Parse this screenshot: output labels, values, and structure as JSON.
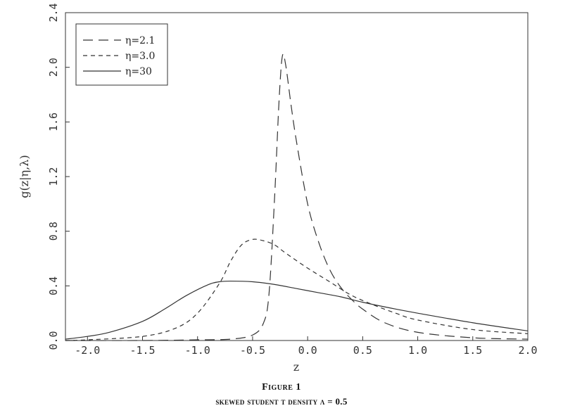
{
  "chart_data": {
    "type": "line",
    "xlabel": "z",
    "ylabel": "g(z|η,λ)",
    "xlim": [
      -2.2,
      2.0
    ],
    "ylim": [
      0.0,
      2.4
    ],
    "xticks": [
      -2.0,
      -1.5,
      -1.0,
      -0.5,
      0.0,
      0.5,
      1.0,
      1.5,
      2.0
    ],
    "xtick_labels": [
      "-2.0",
      "-1.5",
      "-1.0",
      "-0.5",
      "0.0",
      "0.5",
      "1.0",
      "1.5",
      "2.0"
    ],
    "yticks": [
      0.0,
      0.4,
      0.8,
      1.2,
      1.6,
      2.0,
      2.4
    ],
    "ytick_labels": [
      "0.0",
      "0.4",
      "0.8",
      "1.2",
      "1.6",
      "2.0",
      "2.4"
    ],
    "grid": false,
    "legend_position": "top-left",
    "series": [
      {
        "name": "η=2.1",
        "line_style": "long-dash",
        "color": "#333333",
        "points": [
          [
            -2.2,
            0.0
          ],
          [
            -1.5,
            0.0
          ],
          [
            -1.0,
            0.005
          ],
          [
            -0.7,
            0.01
          ],
          [
            -0.5,
            0.04
          ],
          [
            -0.4,
            0.13
          ],
          [
            -0.35,
            0.35
          ],
          [
            -0.3,
            1.05
          ],
          [
            -0.26,
            1.75
          ],
          [
            -0.23,
            2.08
          ],
          [
            -0.2,
            2.02
          ],
          [
            -0.15,
            1.72
          ],
          [
            -0.1,
            1.45
          ],
          [
            0.0,
            1.0
          ],
          [
            0.1,
            0.72
          ],
          [
            0.2,
            0.52
          ],
          [
            0.3,
            0.39
          ],
          [
            0.4,
            0.3
          ],
          [
            0.5,
            0.23
          ],
          [
            0.7,
            0.13
          ],
          [
            1.0,
            0.06
          ],
          [
            1.5,
            0.02
          ],
          [
            2.0,
            0.01
          ]
        ]
      },
      {
        "name": "η=3.0",
        "line_style": "short-dash",
        "color": "#333333",
        "points": [
          [
            -2.2,
            0.0
          ],
          [
            -2.0,
            0.005
          ],
          [
            -1.5,
            0.03
          ],
          [
            -1.2,
            0.09
          ],
          [
            -1.0,
            0.2
          ],
          [
            -0.8,
            0.42
          ],
          [
            -0.7,
            0.58
          ],
          [
            -0.6,
            0.7
          ],
          [
            -0.5,
            0.74
          ],
          [
            -0.4,
            0.73
          ],
          [
            -0.3,
            0.7
          ],
          [
            -0.2,
            0.64
          ],
          [
            0.0,
            0.53
          ],
          [
            0.2,
            0.43
          ],
          [
            0.4,
            0.33
          ],
          [
            0.6,
            0.26
          ],
          [
            0.8,
            0.2
          ],
          [
            1.0,
            0.15
          ],
          [
            1.5,
            0.08
          ],
          [
            2.0,
            0.05
          ]
        ]
      },
      {
        "name": "η=30",
        "line_style": "solid",
        "color": "#333333",
        "points": [
          [
            -2.2,
            0.01
          ],
          [
            -2.0,
            0.03
          ],
          [
            -1.8,
            0.06
          ],
          [
            -1.5,
            0.14
          ],
          [
            -1.3,
            0.23
          ],
          [
            -1.1,
            0.33
          ],
          [
            -0.9,
            0.41
          ],
          [
            -0.8,
            0.43
          ],
          [
            -0.7,
            0.435
          ],
          [
            -0.5,
            0.43
          ],
          [
            -0.3,
            0.41
          ],
          [
            -0.1,
            0.38
          ],
          [
            0.1,
            0.35
          ],
          [
            0.3,
            0.32
          ],
          [
            0.5,
            0.28
          ],
          [
            0.8,
            0.23
          ],
          [
            1.0,
            0.2
          ],
          [
            1.5,
            0.13
          ],
          [
            2.0,
            0.07
          ]
        ]
      }
    ]
  },
  "caption": {
    "title": "Figure 1",
    "subtitle": "skewed student t density λ = 0.5"
  }
}
